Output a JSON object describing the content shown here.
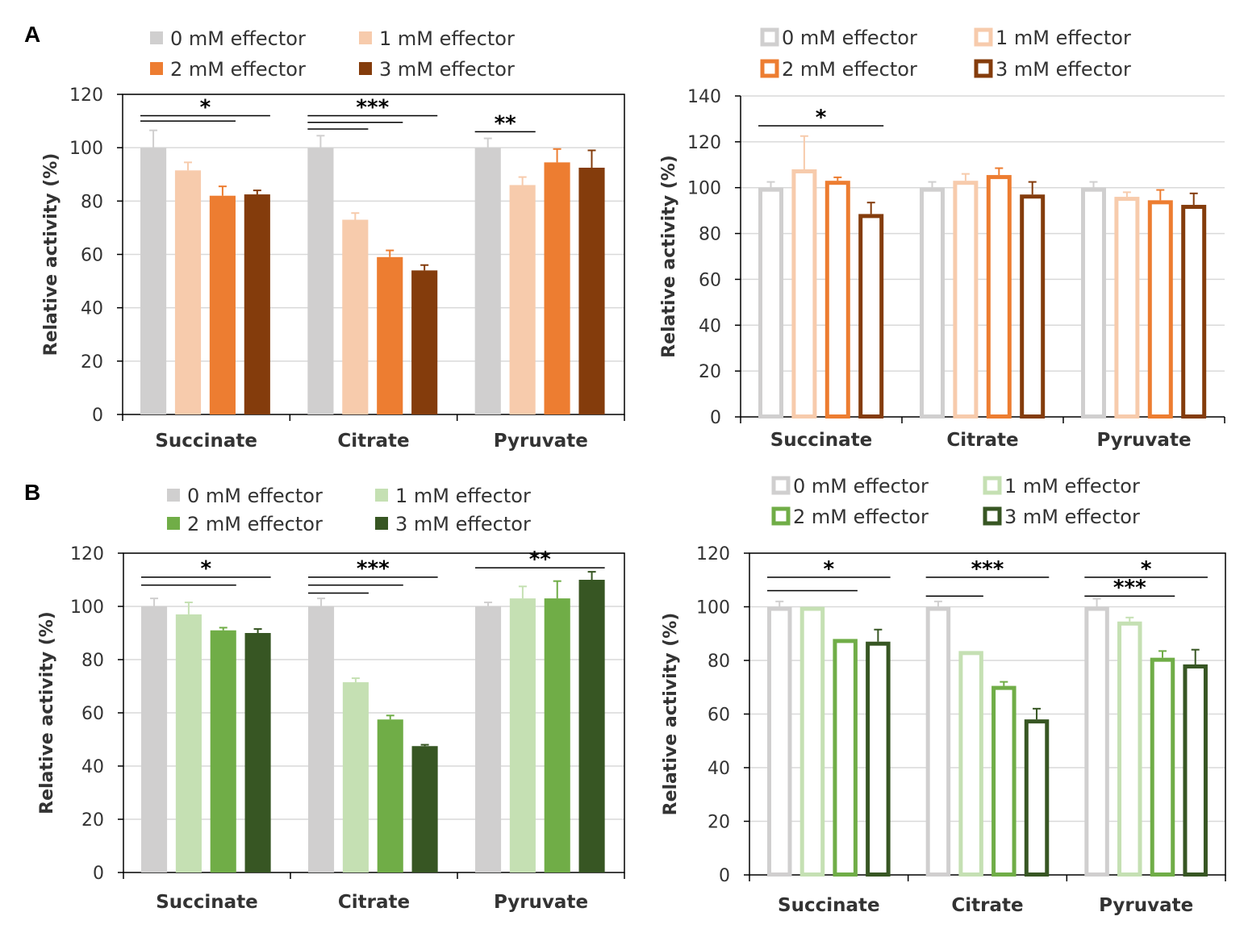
{
  "panel_labels": [
    "A",
    "B"
  ],
  "chart_data": [
    {
      "panel": "A",
      "type": "bar",
      "style": "filled",
      "categories": [
        "Succinate",
        "Citrate",
        "Pyruvate"
      ],
      "series": [
        {
          "name": "0 mM effector",
          "color": "#d0cfcf",
          "values": [
            100,
            100,
            100
          ],
          "errors": [
            6.5,
            4.5,
            3.5
          ]
        },
        {
          "name": "1 mM effector",
          "color": "#f7cbac",
          "values": [
            91.5,
            73,
            86
          ],
          "errors": [
            3,
            2.5,
            3
          ]
        },
        {
          "name": "2 mM effector",
          "color": "#ed7d31",
          "values": [
            82,
            59,
            94.5
          ],
          "errors": [
            3.5,
            2.5,
            5
          ]
        },
        {
          "name": "3 mM effector",
          "color": "#843c0c",
          "values": [
            82.5,
            54,
            92.5
          ],
          "errors": [
            1.5,
            2,
            6.5
          ]
        }
      ],
      "ylabel": "Relative activity (%)",
      "ylim": [
        0,
        120
      ],
      "yticks": [
        0,
        20,
        40,
        60,
        80,
        100,
        120
      ],
      "grid": true,
      "legend": "top",
      "significance": [
        {
          "category": 0,
          "text": "*",
          "brackets": [
            {
              "to": 2,
              "y": 110
            },
            {
              "to": 3,
              "y": 112
            }
          ]
        },
        {
          "category": 1,
          "text": "***",
          "brackets": [
            {
              "to": 1,
              "y": 107
            },
            {
              "to": 2,
              "y": 109.5
            },
            {
              "to": 3,
              "y": 112
            }
          ]
        },
        {
          "category": 2,
          "text": "**",
          "brackets": [
            {
              "to": 1,
              "y": 106
            }
          ]
        }
      ]
    },
    {
      "panel": "A",
      "type": "bar",
      "style": "outline",
      "categories": [
        "Succinate",
        "Citrate",
        "Pyruvate"
      ],
      "series": [
        {
          "name": "0 mM effector",
          "color": "#d0cfcf",
          "values": [
            100,
            100,
            100
          ],
          "errors": [
            2.5,
            2.5,
            2.5
          ]
        },
        {
          "name": "1 mM effector",
          "color": "#f7cbac",
          "values": [
            108,
            103,
            96
          ],
          "errors": [
            14.5,
            3,
            2
          ]
        },
        {
          "name": "2 mM effector",
          "color": "#ed7d31",
          "values": [
            103,
            105.5,
            94.5
          ],
          "errors": [
            1.5,
            3,
            4.5
          ]
        },
        {
          "name": "3 mM effector",
          "color": "#843c0c",
          "values": [
            88.5,
            97,
            92.5
          ],
          "errors": [
            5,
            5.5,
            5
          ]
        }
      ],
      "ylabel": "Relative activity (%)",
      "ylim": [
        0,
        140
      ],
      "yticks": [
        0,
        20,
        40,
        60,
        80,
        100,
        120,
        140
      ],
      "grid": true,
      "legend": "top",
      "significance": [
        {
          "category": 0,
          "text": "*",
          "brackets": [
            {
              "to": 3,
              "y": 127
            }
          ]
        }
      ]
    },
    {
      "panel": "B",
      "type": "bar",
      "style": "filled",
      "categories": [
        "Succinate",
        "Citrate",
        "Pyruvate"
      ],
      "series": [
        {
          "name": "0 mM effector",
          "color": "#d0cfcf",
          "values": [
            100,
            100,
            100
          ],
          "errors": [
            3,
            3,
            1.5
          ]
        },
        {
          "name": "1 mM effector",
          "color": "#c5e0b3",
          "values": [
            97,
            71.5,
            103
          ],
          "errors": [
            4.5,
            1.5,
            4.5
          ]
        },
        {
          "name": "2 mM effector",
          "color": "#70ad47",
          "values": [
            91,
            57.5,
            103
          ],
          "errors": [
            1,
            1.5,
            6.5
          ]
        },
        {
          "name": "3 mM effector",
          "color": "#375623",
          "values": [
            90,
            47.5,
            110
          ],
          "errors": [
            1.5,
            0.5,
            3
          ]
        }
      ],
      "ylabel": "Relative activity (%)",
      "ylim": [
        0,
        120
      ],
      "yticks": [
        0,
        20,
        40,
        60,
        80,
        100,
        120
      ],
      "grid": true,
      "legend": "top",
      "significance": [
        {
          "category": 0,
          "text": "*",
          "brackets": [
            {
              "to": 2,
              "y": 108
            },
            {
              "to": 3,
              "y": 111
            }
          ]
        },
        {
          "category": 1,
          "text": "***",
          "brackets": [
            {
              "to": 1,
              "y": 105
            },
            {
              "to": 2,
              "y": 108
            },
            {
              "to": 3,
              "y": 111
            }
          ]
        },
        {
          "category": 2,
          "text": "**",
          "brackets": [
            {
              "to": 3,
              "y": 114.5
            }
          ]
        }
      ]
    },
    {
      "panel": "B",
      "type": "bar",
      "style": "outline",
      "categories": [
        "Succinate",
        "Citrate",
        "Pyruvate"
      ],
      "series": [
        {
          "name": "0 mM effector",
          "color": "#d0cfcf",
          "values": [
            100,
            100,
            100
          ],
          "errors": [
            2,
            2,
            3
          ]
        },
        {
          "name": "1 mM effector",
          "color": "#c5e0b3",
          "values": [
            100,
            83.5,
            94.5
          ],
          "errors": [
            0,
            0,
            1.5
          ]
        },
        {
          "name": "2 mM effector",
          "color": "#70ad47",
          "values": [
            88,
            70.5,
            81
          ],
          "errors": [
            0,
            1.5,
            2.5
          ]
        },
        {
          "name": "3 mM effector",
          "color": "#375623",
          "values": [
            87,
            58,
            78.5
          ],
          "errors": [
            4.5,
            4,
            5.5
          ]
        }
      ],
      "ylabel": "Relative activity (%)",
      "ylim": [
        0,
        120
      ],
      "yticks": [
        0,
        20,
        40,
        60,
        80,
        100,
        120
      ],
      "grid": true,
      "legend": "top",
      "significance": [
        {
          "category": 0,
          "text": "*",
          "brackets": [
            {
              "to": 2,
              "y": 106
            },
            {
              "to": 3,
              "y": 111
            }
          ]
        },
        {
          "category": 1,
          "text": "***",
          "brackets": [
            {
              "to": 1,
              "y": 104
            },
            {
              "to": 3,
              "y": 111
            }
          ]
        },
        {
          "category": 2,
          "text": "*",
          "brackets": [
            {
              "to": 3,
              "y": 111
            }
          ]
        },
        {
          "category": 2,
          "text": "***",
          "brackets": [
            {
              "to": 2,
              "y": 104
            }
          ]
        }
      ]
    }
  ]
}
